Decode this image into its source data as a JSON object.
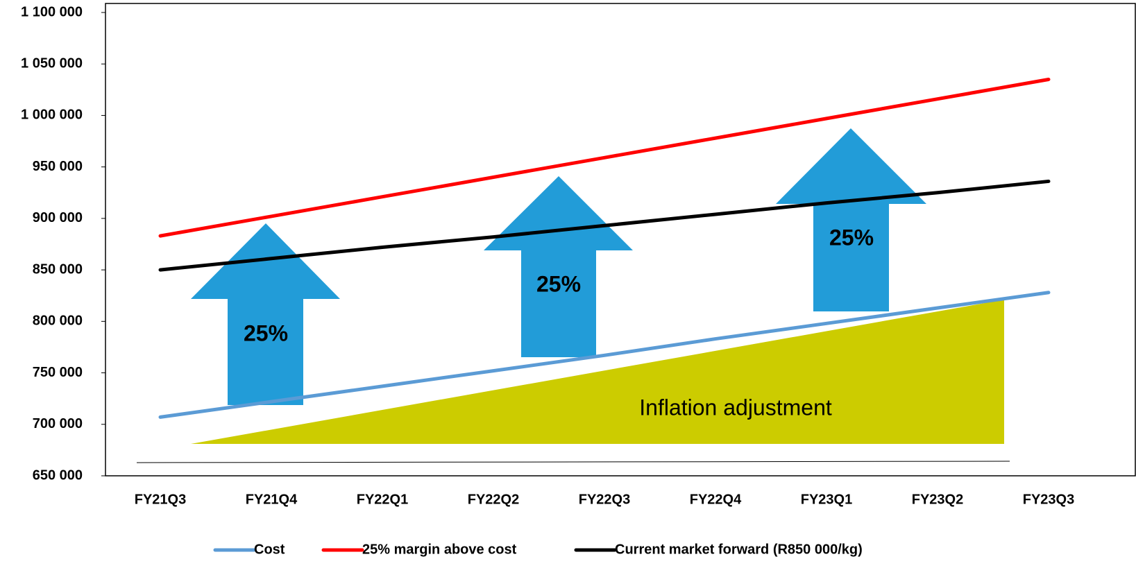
{
  "chart_data": {
    "type": "line",
    "categories": [
      "FY21Q3",
      "FY21Q4",
      "FY22Q1",
      "FY22Q2",
      "FY22Q3",
      "FY22Q4",
      "FY23Q1",
      "FY23Q2",
      "FY23Q3"
    ],
    "series": [
      {
        "name": "Cost",
        "color": "#5b9bd5",
        "values": [
          707000,
          722000,
          737000,
          752000,
          767000,
          783000,
          798000,
          813000,
          828000
        ]
      },
      {
        "name": "25% margin above cost",
        "color": "#ff0000",
        "values": [
          883000,
          902000,
          921000,
          940000,
          959000,
          978000,
          997000,
          1016000,
          1035000
        ]
      },
      {
        "name": "Current market forward (R850 000/kg)",
        "color": "#000000",
        "values": [
          850000,
          861000,
          872000,
          882000,
          893000,
          904000,
          915000,
          925000,
          936000
        ]
      }
    ],
    "ylim": [
      650000,
      1100000
    ],
    "yticks": [
      {
        "value": 650000,
        "label": "650 000"
      },
      {
        "value": 700000,
        "label": "700 000"
      },
      {
        "value": 750000,
        "label": "750 000"
      },
      {
        "value": 800000,
        "label": "800 000"
      },
      {
        "value": 850000,
        "label": "850 000"
      },
      {
        "value": 900000,
        "label": "900 000"
      },
      {
        "value": 950000,
        "label": "950 000"
      },
      {
        "value": 1000000,
        "label": "1 000 000"
      },
      {
        "value": 1050000,
        "label": "1 050 000"
      },
      {
        "value": 1100000,
        "label": "1 100 000"
      }
    ],
    "annotations": [
      "25%",
      "25%",
      "25%",
      "Inflation adjustment"
    ],
    "legend": "bottom"
  }
}
